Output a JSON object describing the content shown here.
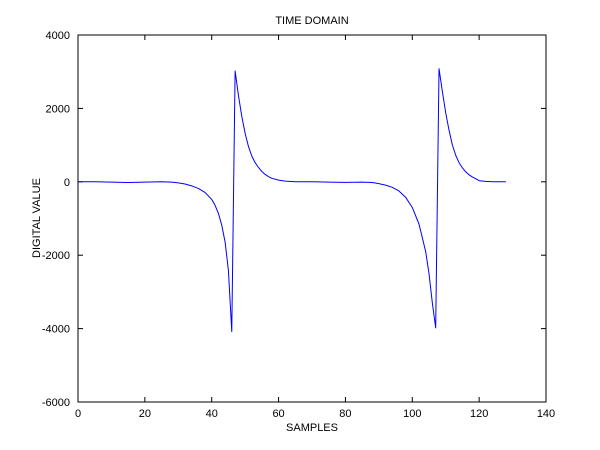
{
  "chart_data": {
    "type": "line",
    "title": "TIME DOMAIN",
    "xlabel": "SAMPLES",
    "ylabel": "DIGITAL VALUE",
    "xlim": [
      0,
      140
    ],
    "ylim": [
      -6000,
      4000
    ],
    "xticks": [
      0,
      20,
      40,
      60,
      80,
      100,
      120,
      140
    ],
    "yticks": [
      -6000,
      -4000,
      -2000,
      0,
      2000,
      4000
    ],
    "xtick_labels": [
      "0",
      "20",
      "40",
      "60",
      "80",
      "100",
      "120",
      "140"
    ],
    "ytick_labels": [
      "-6000",
      "-4000",
      "-2000",
      "0",
      "2000",
      "4000"
    ],
    "grid": false,
    "line_color": "#0000ff",
    "series": [
      {
        "x": [
          0,
          5,
          10,
          15,
          20,
          25,
          28,
          30,
          32,
          34,
          36,
          38,
          40,
          41,
          42,
          43,
          44,
          45,
          46,
          47,
          48,
          49,
          50,
          51,
          52,
          53,
          54,
          55,
          56,
          57,
          58,
          60,
          62,
          65,
          70,
          75,
          80,
          85,
          88,
          90,
          92,
          94,
          96,
          98,
          100,
          102,
          104,
          105,
          106,
          107,
          108,
          109,
          110,
          111,
          112,
          113,
          114,
          115,
          116,
          117,
          118,
          119,
          120,
          122,
          124,
          126,
          128
        ],
        "y": [
          0,
          0,
          -10,
          -20,
          -10,
          0,
          -10,
          -30,
          -60,
          -110,
          -180,
          -290,
          -480,
          -640,
          -860,
          -1180,
          -1640,
          -2420,
          -4080,
          3020,
          2350,
          1780,
          1320,
          960,
          700,
          520,
          390,
          280,
          200,
          140,
          95,
          45,
          20,
          0,
          0,
          -10,
          -15,
          -10,
          -20,
          -50,
          -90,
          -150,
          -250,
          -420,
          -700,
          -1150,
          -1900,
          -2500,
          -3300,
          -3980,
          3080,
          2460,
          1880,
          1400,
          1000,
          720,
          520,
          380,
          270,
          190,
          130,
          85,
          30,
          10,
          0,
          0,
          0
        ]
      }
    ]
  }
}
